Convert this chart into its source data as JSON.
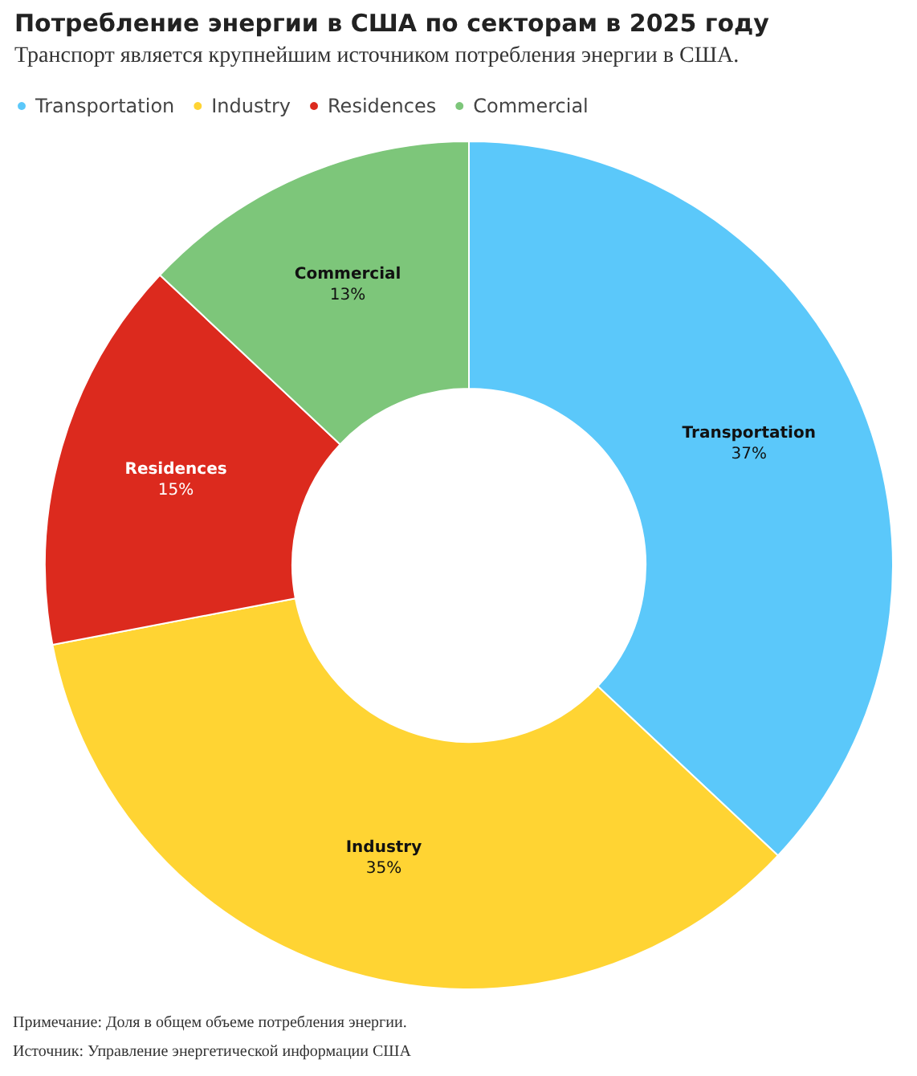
{
  "chart_data": {
    "type": "donut",
    "title": "Потребление энергии в США по секторам в 2025 году",
    "subtitle": "Транспорт является крупнейшим источником потребления энергии в США.",
    "categories": [
      "Transportation",
      "Industry",
      "Residences",
      "Commercial"
    ],
    "values": [
      37,
      35,
      15,
      13
    ],
    "value_labels": [
      "37%",
      "35%",
      "15%",
      "13%"
    ],
    "colors": [
      "#5bc8fa",
      "#ffd433",
      "#dc2a1e",
      "#7dc67a"
    ],
    "legend": "top left",
    "annotations": [
      "Примечание: Доля в общем объеме потребления энергии.",
      "Источник: Управление энергетической информации США"
    ]
  }
}
